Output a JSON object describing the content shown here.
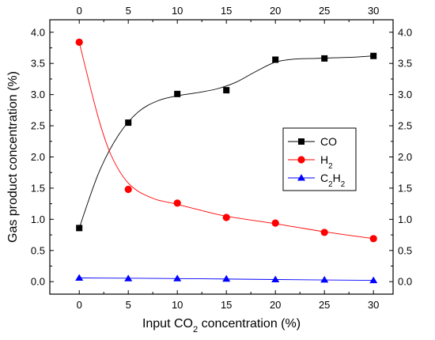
{
  "chart_data": {
    "type": "scatter",
    "title": "",
    "xlabel": "Input CO₂ concentration (%)",
    "xlabel_parts": {
      "pre": "Input CO",
      "sub": "2",
      "post": " concentration (%)"
    },
    "ylabel": "Gas product concentration (%)",
    "xlim": [
      -3,
      32
    ],
    "ylim": [
      -0.2,
      4.2
    ],
    "x_ticks": [
      0,
      5,
      10,
      15,
      20,
      25,
      30
    ],
    "y_ticks": [
      0.0,
      0.5,
      1.0,
      1.5,
      2.0,
      2.5,
      3.0,
      3.5,
      4.0
    ],
    "y_tick_labels": [
      "0.0",
      "0.5",
      "1.0",
      "1.5",
      "2.0",
      "2.5",
      "3.0",
      "3.5",
      "4.0"
    ],
    "mirror_axes": true,
    "grid": false,
    "legend_position": "center-right",
    "series": [
      {
        "name": "CO",
        "name_parts": [
          [
            "CO",
            ""
          ]
        ],
        "marker": "square",
        "color": "#000000",
        "line_color": "#000000",
        "x": [
          0,
          5,
          10,
          15,
          20,
          25,
          30
        ],
        "y": [
          0.86,
          2.55,
          3.01,
          3.07,
          3.56,
          3.58,
          3.62
        ],
        "fit": [
          [
            0,
            0.86
          ],
          [
            2,
            1.75
          ],
          [
            4,
            2.35
          ],
          [
            6,
            2.72
          ],
          [
            8,
            2.9
          ],
          [
            10,
            2.98
          ],
          [
            12,
            3.03
          ],
          [
            14,
            3.09
          ],
          [
            16,
            3.2
          ],
          [
            18,
            3.37
          ],
          [
            20,
            3.52
          ],
          [
            22,
            3.57
          ],
          [
            24,
            3.58
          ],
          [
            26,
            3.59
          ],
          [
            28,
            3.6
          ],
          [
            30,
            3.62
          ]
        ]
      },
      {
        "name": "H2",
        "name_parts": [
          [
            "H",
            ""
          ],
          [
            "2",
            "sub"
          ]
        ],
        "marker": "circle",
        "color": "#ff0000",
        "line_color": "#ff0000",
        "x": [
          0,
          5,
          10,
          15,
          20,
          25,
          30
        ],
        "y": [
          3.84,
          1.48,
          1.26,
          1.03,
          0.94,
          0.79,
          0.69
        ],
        "fit": [
          [
            0,
            3.84
          ],
          [
            1,
            3.2
          ],
          [
            2,
            2.6
          ],
          [
            3,
            2.12
          ],
          [
            4,
            1.8
          ],
          [
            5,
            1.58
          ],
          [
            6,
            1.45
          ],
          [
            7,
            1.37
          ],
          [
            8,
            1.31
          ],
          [
            10,
            1.24
          ],
          [
            12,
            1.16
          ],
          [
            15,
            1.05
          ],
          [
            20,
            0.93
          ],
          [
            25,
            0.8
          ],
          [
            30,
            0.69
          ]
        ]
      },
      {
        "name": "C2H2",
        "name_parts": [
          [
            "C",
            ""
          ],
          [
            "2",
            "sub"
          ],
          [
            "H",
            ""
          ],
          [
            "2",
            "sub"
          ]
        ],
        "marker": "triangle",
        "color": "#0000ff",
        "line_color": "#0000ff",
        "x": [
          0,
          5,
          10,
          15,
          20,
          25,
          30
        ],
        "y": [
          0.06,
          0.05,
          0.05,
          0.045,
          0.035,
          0.03,
          0.02
        ],
        "fit": [
          [
            0,
            0.06
          ],
          [
            10,
            0.05
          ],
          [
            20,
            0.035
          ],
          [
            30,
            0.02
          ]
        ]
      }
    ]
  }
}
